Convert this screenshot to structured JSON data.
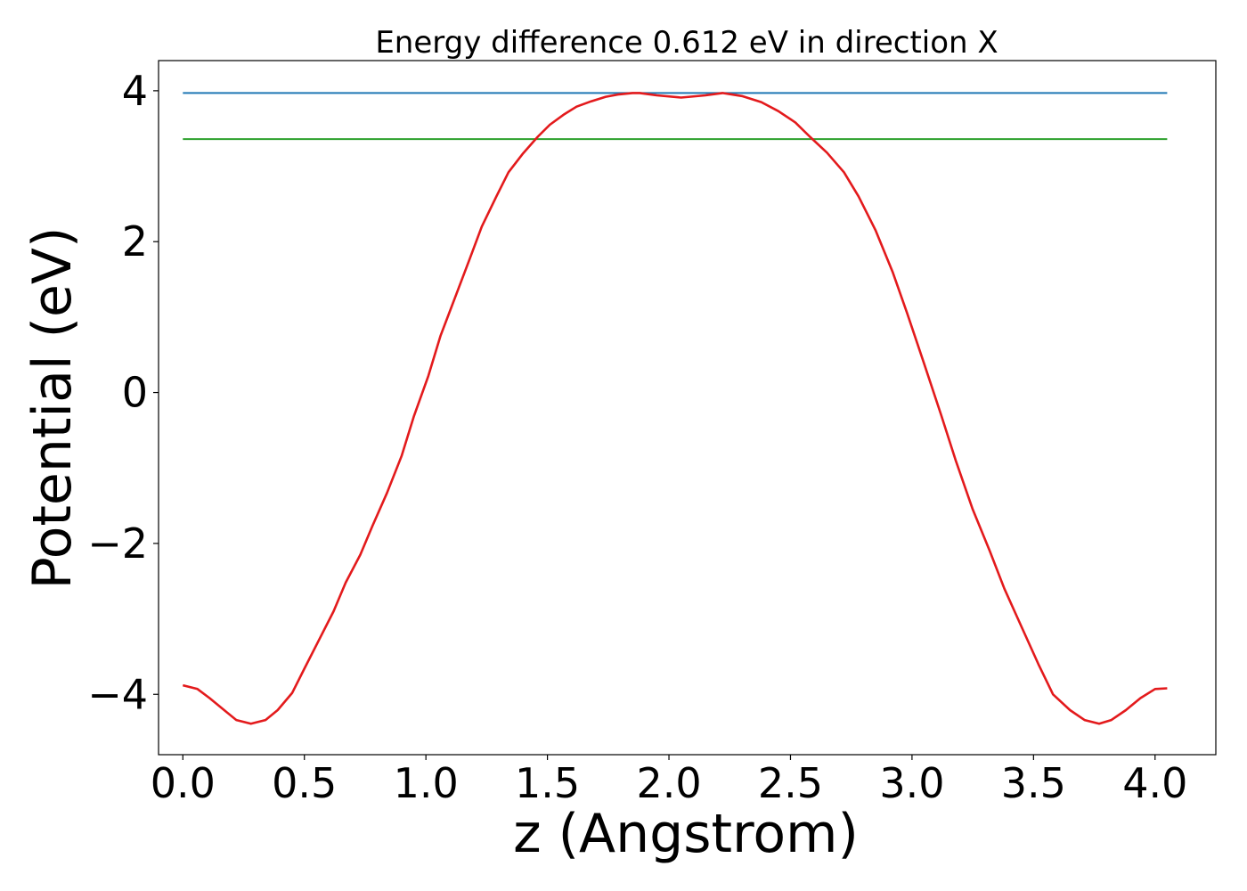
{
  "chart_data": {
    "type": "line",
    "title": "Energy difference 0.612 eV in direction X",
    "xlabel": "z (Angstrom)",
    "ylabel": "Potential (eV)",
    "xlim": [
      -0.1,
      4.25
    ],
    "ylim": [
      -4.8,
      4.4
    ],
    "xticks": [
      0.0,
      0.5,
      1.0,
      1.5,
      2.0,
      2.5,
      3.0,
      3.5,
      4.0
    ],
    "xtick_labels": [
      "0.0",
      "0.5",
      "1.0",
      "1.5",
      "2.0",
      "2.5",
      "3.0",
      "3.5",
      "4.0"
    ],
    "yticks": [
      -4,
      -2,
      0,
      2,
      4
    ],
    "ytick_labels": [
      "−4",
      "−2",
      "0",
      "2",
      "4"
    ],
    "grid": false,
    "series": [
      {
        "color": "#1f77b4",
        "x": [
          0.0,
          4.05
        ],
        "y": [
          3.97,
          3.97
        ]
      },
      {
        "color": "#2ca02c",
        "x": [
          0.0,
          4.05
        ],
        "y": [
          3.36,
          3.36
        ]
      },
      {
        "color": "#e31a1c",
        "x": [
          0.0,
          0.06,
          0.11,
          0.17,
          0.22,
          0.28,
          0.34,
          0.39,
          0.45,
          0.5,
          0.56,
          0.62,
          0.67,
          0.73,
          0.78,
          0.84,
          0.9,
          0.95,
          1.01,
          1.06,
          1.12,
          1.18,
          1.23,
          1.29,
          1.34,
          1.4,
          1.46,
          1.51,
          1.57,
          1.62,
          1.68,
          1.74,
          1.79,
          1.85,
          1.88,
          1.95,
          2.05,
          2.15,
          2.22,
          2.3,
          2.38,
          2.45,
          2.52,
          2.58,
          2.65,
          2.72,
          2.78,
          2.85,
          2.92,
          2.98,
          3.05,
          3.12,
          3.18,
          3.25,
          3.32,
          3.38,
          3.45,
          3.52,
          3.58,
          3.65,
          3.71,
          3.77,
          3.82,
          3.88,
          3.94,
          4.0,
          4.05
        ],
        "y": [
          -3.88,
          -3.93,
          -4.05,
          -4.21,
          -4.34,
          -4.39,
          -4.34,
          -4.21,
          -3.98,
          -3.66,
          -3.28,
          -2.9,
          -2.52,
          -2.15,
          -1.77,
          -1.33,
          -0.84,
          -0.32,
          0.22,
          0.75,
          1.26,
          1.77,
          2.2,
          2.6,
          2.92,
          3.17,
          3.39,
          3.55,
          3.69,
          3.79,
          3.86,
          3.92,
          3.95,
          3.97,
          3.97,
          3.94,
          3.91,
          3.94,
          3.97,
          3.93,
          3.85,
          3.73,
          3.58,
          3.39,
          3.18,
          2.92,
          2.6,
          2.15,
          1.6,
          1.05,
          0.38,
          -0.3,
          -0.9,
          -1.55,
          -2.1,
          -2.6,
          -3.1,
          -3.6,
          -4.0,
          -4.21,
          -4.34,
          -4.39,
          -4.34,
          -4.21,
          -4.05,
          -3.93,
          -3.92
        ]
      }
    ]
  }
}
